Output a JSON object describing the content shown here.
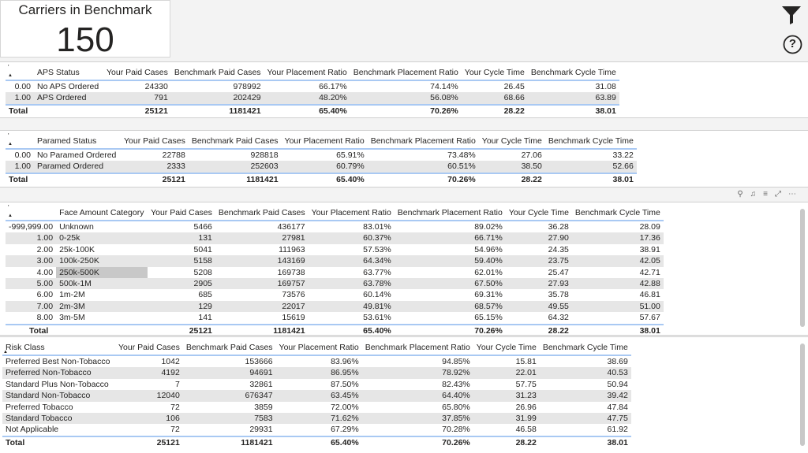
{
  "kpi": {
    "title": "Carriers in Benchmark",
    "value": "150"
  },
  "icons": {
    "filter": "filter-icon",
    "help": "help-icon",
    "help_glyph": "?"
  },
  "visual_header_icons": [
    "pin-icon",
    "bell-icon",
    "filter-icon",
    "focus-icon",
    "more-icon"
  ],
  "visual_header_glyphs": [
    "⚲",
    "♫",
    "≡",
    "⤢",
    "⋯"
  ],
  "tables": [
    {
      "first_col_header": "'",
      "label_header": "APS Status",
      "columns": [
        "Your Paid Cases",
        "Benchmark Paid Cases",
        "Your Placement Ratio",
        "Benchmark Placement Ratio",
        "Your Cycle Time",
        "Benchmark Cycle Time"
      ],
      "rows": [
        [
          "0.00",
          "No APS Ordered",
          "24330",
          "978992",
          "66.17%",
          "74.14%",
          "26.45",
          "31.08"
        ],
        [
          "1.00",
          "APS Ordered",
          "791",
          "202429",
          "48.20%",
          "56.08%",
          "68.66",
          "63.89"
        ]
      ],
      "total": [
        "Total",
        "",
        "25121",
        "1181421",
        "65.40%",
        "70.26%",
        "28.22",
        "38.01"
      ]
    },
    {
      "first_col_header": "'",
      "label_header": "Paramed Status",
      "columns": [
        "Your Paid Cases",
        "Benchmark Paid Cases",
        "Your Placement Ratio",
        "Benchmark Placement Ratio",
        "Your Cycle Time",
        "Benchmark Cycle Time"
      ],
      "rows": [
        [
          "0.00",
          "No Paramed Ordered",
          "22788",
          "928818",
          "65.91%",
          "73.48%",
          "27.06",
          "33.22"
        ],
        [
          "1.00",
          "Paramed Ordered",
          "2333",
          "252603",
          "60.79%",
          "60.51%",
          "38.50",
          "52.66"
        ]
      ],
      "total": [
        "Total",
        "",
        "25121",
        "1181421",
        "65.40%",
        "70.26%",
        "28.22",
        "38.01"
      ]
    },
    {
      "first_col_header": "'",
      "label_header": "Face Amount Category",
      "columns": [
        "Your Paid Cases",
        "Benchmark Paid Cases",
        "Your Placement Ratio",
        "Benchmark Placement Ratio",
        "Your Cycle Time",
        "Benchmark Cycle Time"
      ],
      "rows": [
        [
          "-999,999.00",
          "Unknown",
          "5466",
          "436177",
          "83.01%",
          "89.02%",
          "36.28",
          "28.09"
        ],
        [
          "1.00",
          "0-25k",
          "131",
          "27981",
          "60.37%",
          "66.71%",
          "27.90",
          "17.36"
        ],
        [
          "2.00",
          "25k-100K",
          "5041",
          "111963",
          "57.53%",
          "54.96%",
          "24.35",
          "38.91"
        ],
        [
          "3.00",
          "100k-250K",
          "5158",
          "143169",
          "64.34%",
          "59.40%",
          "23.75",
          "42.05"
        ],
        [
          "4.00",
          "250k-500K",
          "5208",
          "169738",
          "63.77%",
          "62.01%",
          "25.47",
          "42.71"
        ],
        [
          "5.00",
          "500k-1M",
          "2905",
          "169757",
          "63.78%",
          "67.50%",
          "27.93",
          "42.88"
        ],
        [
          "6.00",
          "1m-2M",
          "685",
          "73576",
          "60.14%",
          "69.31%",
          "35.78",
          "46.81"
        ],
        [
          "7.00",
          "2m-3M",
          "129",
          "22017",
          "49.81%",
          "68.57%",
          "49.55",
          "51.00"
        ],
        [
          "8.00",
          "3m-5M",
          "141",
          "15619",
          "53.61%",
          "65.15%",
          "64.32",
          "57.67"
        ]
      ],
      "total": [
        "Total",
        "",
        "25121",
        "1181421",
        "65.40%",
        "70.26%",
        "28.22",
        "38.01"
      ]
    },
    {
      "label_header": "Risk Class",
      "columns": [
        "Your Paid Cases",
        "Benchmark Paid Cases",
        "Your Placement Ratio",
        "Benchmark Placement Ratio",
        "Your Cycle Time",
        "Benchmark Cycle Time"
      ],
      "rows": [
        [
          "Preferred Best Non-Tobacco",
          "1042",
          "153666",
          "83.96%",
          "94.85%",
          "15.81",
          "38.69"
        ],
        [
          "Preferred Non-Tobacco",
          "4192",
          "94691",
          "86.95%",
          "78.92%",
          "22.01",
          "40.53"
        ],
        [
          "Standard Plus Non-Tobacco",
          "7",
          "32861",
          "87.50%",
          "82.43%",
          "57.75",
          "50.94"
        ],
        [
          "Standard Non-Tobacco",
          "12040",
          "676347",
          "63.45%",
          "64.40%",
          "31.23",
          "39.42"
        ],
        [
          "Preferred Tobacco",
          "72",
          "3859",
          "72.00%",
          "65.80%",
          "26.96",
          "47.84"
        ],
        [
          "Standard Tobacco",
          "106",
          "7583",
          "71.62%",
          "37.85%",
          "31.99",
          "47.75"
        ],
        [
          "Not Applicable",
          "72",
          "29931",
          "67.29%",
          "70.28%",
          "46.58",
          "61.92"
        ]
      ],
      "total": [
        "Total",
        "25121",
        "1181421",
        "65.40%",
        "70.26%",
        "28.22",
        "38.01"
      ]
    }
  ]
}
